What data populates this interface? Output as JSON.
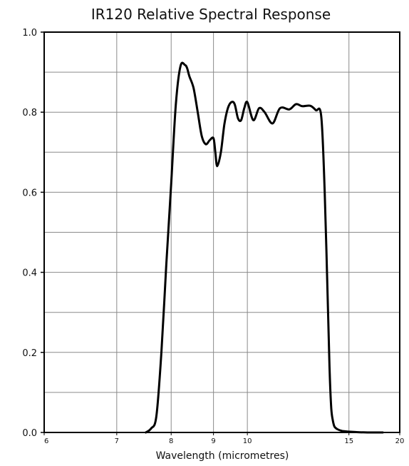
{
  "chart_data": {
    "type": "line",
    "title": "IR120 Relative Spectral Response",
    "xlabel": "Wavelength (micrometres)",
    "ylabel": "",
    "x_scale": "reciprocal",
    "xlim": [
      6,
      20
    ],
    "ylim": [
      0,
      1.0
    ],
    "x_ticks": [
      6,
      7,
      8,
      9,
      10,
      15,
      20
    ],
    "y_ticks": [
      0.0,
      0.2,
      0.4,
      0.6,
      0.8,
      1.0
    ],
    "x_tick_labels": [
      "6",
      "7",
      "8",
      "9",
      "10",
      "15",
      "20"
    ],
    "y_tick_labels": [
      "0.0",
      "0.2",
      "0.4",
      "0.6",
      "0.8",
      "1.0"
    ],
    "x_gridlines": [
      7,
      8,
      9,
      10,
      15
    ],
    "y_gridlines": [
      0.1,
      0.2,
      0.3,
      0.4,
      0.5,
      0.6,
      0.7,
      0.8,
      0.9
    ],
    "grid": true,
    "series": [
      {
        "color": "#000000",
        "x": [
          7.5,
          7.6,
          7.7,
          7.8,
          7.9,
          8.0,
          8.1,
          8.2,
          8.3,
          8.35,
          8.4,
          8.5,
          8.6,
          8.7,
          8.8,
          8.9,
          9.0,
          9.05,
          9.1,
          9.2,
          9.3,
          9.4,
          9.5,
          9.6,
          9.7,
          9.8,
          9.9,
          10.0,
          10.2,
          10.4,
          10.6,
          10.9,
          11.2,
          11.6,
          11.9,
          12.2,
          12.6,
          12.9,
          13.2,
          13.4,
          13.6,
          13.7,
          13.8,
          13.9,
          14.0,
          14.2,
          14.5,
          15.0,
          15.5,
          16.5,
          18.0
        ],
        "y": [
          0.0,
          0.01,
          0.04,
          0.2,
          0.42,
          0.62,
          0.82,
          0.915,
          0.918,
          0.91,
          0.89,
          0.86,
          0.8,
          0.74,
          0.72,
          0.73,
          0.735,
          0.7,
          0.665,
          0.7,
          0.77,
          0.81,
          0.825,
          0.82,
          0.785,
          0.78,
          0.81,
          0.825,
          0.78,
          0.81,
          0.8,
          0.772,
          0.81,
          0.807,
          0.82,
          0.815,
          0.816,
          0.805,
          0.79,
          0.6,
          0.3,
          0.15,
          0.06,
          0.03,
          0.015,
          0.008,
          0.004,
          0.002,
          0.001,
          0.0,
          0.0
        ]
      }
    ]
  }
}
